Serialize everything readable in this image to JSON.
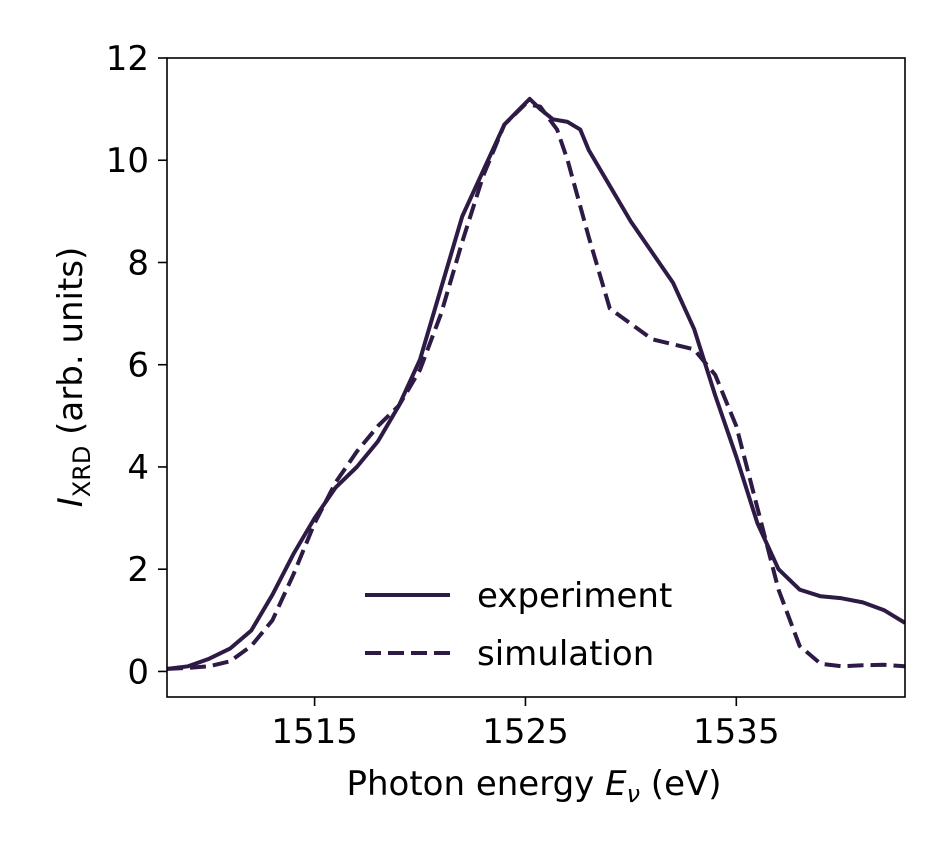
{
  "chart_data": {
    "type": "line",
    "xlabel_prefix": "Photon energy ",
    "xlabel_var": "E",
    "xlabel_sub": "ν",
    "xlabel_unit": " (eV)",
    "ylabel_var": "I",
    "ylabel_sub": "XRD",
    "ylabel_unit": " (arb. units)",
    "xlim": [
      1508,
      1543
    ],
    "ylim": [
      -0.5,
      12
    ],
    "xticks": [
      1515,
      1525,
      1535
    ],
    "yticks": [
      0,
      2,
      4,
      6,
      8,
      10,
      12
    ],
    "grid": false,
    "legend_position": "bottom-center",
    "series": [
      {
        "name": "experiment",
        "style": "solid",
        "color": "#2d1a45",
        "x": [
          1508,
          1509,
          1510,
          1511,
          1512,
          1513,
          1514,
          1515,
          1516,
          1517,
          1518,
          1519,
          1520,
          1521,
          1522,
          1523,
          1524,
          1524.6,
          1525.2,
          1525.7,
          1526.3,
          1527,
          1527.6,
          1528,
          1529,
          1530,
          1531,
          1532,
          1533,
          1534,
          1535,
          1536,
          1537,
          1538,
          1539,
          1540,
          1541,
          1542,
          1543
        ],
        "y": [
          0.05,
          0.1,
          0.25,
          0.45,
          0.8,
          1.5,
          2.3,
          3.0,
          3.6,
          4.0,
          4.5,
          5.2,
          6.1,
          7.5,
          8.9,
          9.8,
          10.7,
          10.95,
          11.2,
          11.0,
          10.8,
          10.75,
          10.6,
          10.2,
          9.5,
          8.8,
          8.2,
          7.6,
          6.7,
          5.4,
          4.2,
          2.9,
          2.0,
          1.6,
          1.47,
          1.43,
          1.35,
          1.2,
          0.95
        ]
      },
      {
        "name": "simulation",
        "style": "dashed",
        "color": "#2d1a45",
        "x": [
          1508,
          1509,
          1510,
          1511,
          1512,
          1513,
          1514,
          1515,
          1516,
          1517,
          1518,
          1519,
          1520,
          1521,
          1522,
          1523,
          1524,
          1525,
          1525.7,
          1526.5,
          1527,
          1528,
          1529,
          1530,
          1531,
          1532,
          1533,
          1534,
          1535,
          1536,
          1537,
          1538,
          1539,
          1540,
          1541,
          1542,
          1543
        ],
        "y": [
          0.05,
          0.07,
          0.1,
          0.2,
          0.5,
          1.0,
          1.9,
          2.9,
          3.7,
          4.3,
          4.8,
          5.2,
          5.9,
          7.0,
          8.4,
          9.7,
          10.7,
          11.1,
          11.05,
          10.6,
          10.0,
          8.5,
          7.1,
          6.8,
          6.5,
          6.4,
          6.3,
          5.8,
          4.8,
          3.2,
          1.6,
          0.5,
          0.15,
          0.1,
          0.12,
          0.13,
          0.1
        ]
      }
    ]
  }
}
